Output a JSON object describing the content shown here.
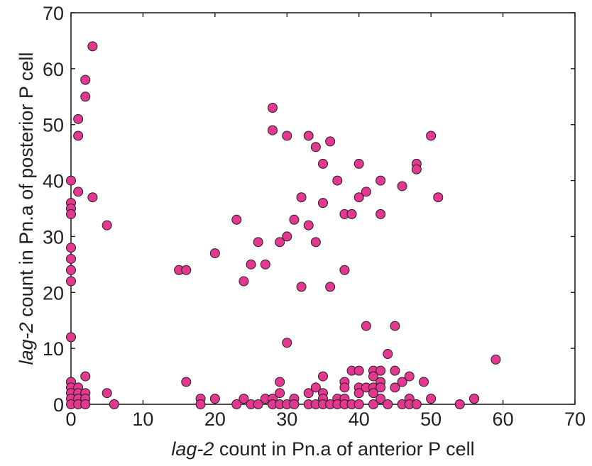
{
  "chart_data": {
    "type": "scatter",
    "title": "",
    "xlabel": {
      "italic": "lag-2",
      "rest": " count in Pn.a of anterior P cell"
    },
    "ylabel": {
      "italic": "lag-2",
      "rest": " count in Pn.a of posterior P cell"
    },
    "xlim": [
      0,
      70
    ],
    "ylim": [
      0,
      70
    ],
    "xticks": [
      0,
      10,
      20,
      30,
      40,
      50,
      60,
      70
    ],
    "yticks": [
      0,
      10,
      20,
      30,
      40,
      50,
      60,
      70
    ],
    "grid": false,
    "legend": "none",
    "marker_color": "#e2388f",
    "marker_edge_color": "#231f20",
    "points": [
      [
        3,
        64
      ],
      [
        2,
        58
      ],
      [
        2,
        55
      ],
      [
        1,
        51
      ],
      [
        1,
        48
      ],
      [
        0,
        40
      ],
      [
        1,
        38
      ],
      [
        3,
        37
      ],
      [
        0,
        36
      ],
      [
        0,
        35
      ],
      [
        0,
        34
      ],
      [
        5,
        32
      ],
      [
        0,
        28
      ],
      [
        0,
        26
      ],
      [
        0,
        24
      ],
      [
        0,
        22
      ],
      [
        0,
        12
      ],
      [
        0,
        4
      ],
      [
        0,
        3
      ],
      [
        0,
        2
      ],
      [
        0,
        1
      ],
      [
        0,
        0
      ],
      [
        1,
        3
      ],
      [
        1,
        2
      ],
      [
        1,
        1
      ],
      [
        1,
        0
      ],
      [
        2,
        5
      ],
      [
        2,
        2
      ],
      [
        2,
        1
      ],
      [
        2,
        0
      ],
      [
        5,
        2
      ],
      [
        6,
        0
      ],
      [
        15,
        24
      ],
      [
        16,
        24
      ],
      [
        16,
        4
      ],
      [
        18,
        1
      ],
      [
        18,
        0
      ],
      [
        20,
        27
      ],
      [
        20,
        1
      ],
      [
        23,
        33
      ],
      [
        23,
        0
      ],
      [
        24,
        22
      ],
      [
        24,
        1
      ],
      [
        25,
        25
      ],
      [
        25,
        0
      ],
      [
        26,
        29
      ],
      [
        26,
        0
      ],
      [
        27,
        25
      ],
      [
        27,
        1
      ],
      [
        28,
        53
      ],
      [
        28,
        49
      ],
      [
        28,
        1
      ],
      [
        28,
        0
      ],
      [
        29,
        29
      ],
      [
        29,
        4
      ],
      [
        29,
        2
      ],
      [
        29,
        0
      ],
      [
        30,
        48
      ],
      [
        30,
        30
      ],
      [
        30,
        11
      ],
      [
        30,
        0
      ],
      [
        31,
        33
      ],
      [
        31,
        1
      ],
      [
        31,
        0
      ],
      [
        32,
        37
      ],
      [
        32,
        21
      ],
      [
        33,
        48
      ],
      [
        33,
        32
      ],
      [
        33,
        2
      ],
      [
        33,
        0
      ],
      [
        34,
        46
      ],
      [
        34,
        29
      ],
      [
        34,
        3
      ],
      [
        34,
        0
      ],
      [
        35,
        43
      ],
      [
        35,
        36
      ],
      [
        35,
        5
      ],
      [
        35,
        2
      ],
      [
        35,
        1
      ],
      [
        35,
        0
      ],
      [
        36,
        47
      ],
      [
        36,
        21
      ],
      [
        36,
        0
      ],
      [
        37,
        40
      ],
      [
        37,
        1
      ],
      [
        37,
        0
      ],
      [
        38,
        34
      ],
      [
        38,
        24
      ],
      [
        38,
        4
      ],
      [
        38,
        3
      ],
      [
        38,
        1
      ],
      [
        38,
        0
      ],
      [
        39,
        34
      ],
      [
        39,
        6
      ],
      [
        39,
        0
      ],
      [
        40,
        43
      ],
      [
        40,
        37
      ],
      [
        40,
        6
      ],
      [
        40,
        3
      ],
      [
        40,
        2
      ],
      [
        40,
        0
      ],
      [
        41,
        38
      ],
      [
        41,
        14
      ],
      [
        41,
        3
      ],
      [
        42,
        6
      ],
      [
        42,
        5
      ],
      [
        42,
        3
      ],
      [
        42,
        2
      ],
      [
        42,
        0
      ],
      [
        43,
        40
      ],
      [
        43,
        34
      ],
      [
        43,
        6
      ],
      [
        43,
        4
      ],
      [
        43,
        3
      ],
      [
        43,
        1
      ],
      [
        44,
        9
      ],
      [
        44,
        0
      ],
      [
        45,
        14
      ],
      [
        45,
        6
      ],
      [
        45,
        3
      ],
      [
        46,
        39
      ],
      [
        46,
        4
      ],
      [
        46,
        0
      ],
      [
        47,
        5
      ],
      [
        47,
        1
      ],
      [
        47,
        0
      ],
      [
        48,
        43
      ],
      [
        48,
        42
      ],
      [
        48,
        0
      ],
      [
        49,
        4
      ],
      [
        50,
        48
      ],
      [
        50,
        1
      ],
      [
        51,
        37
      ],
      [
        54,
        0
      ],
      [
        56,
        1
      ],
      [
        56,
        1
      ],
      [
        59,
        8
      ]
    ]
  }
}
